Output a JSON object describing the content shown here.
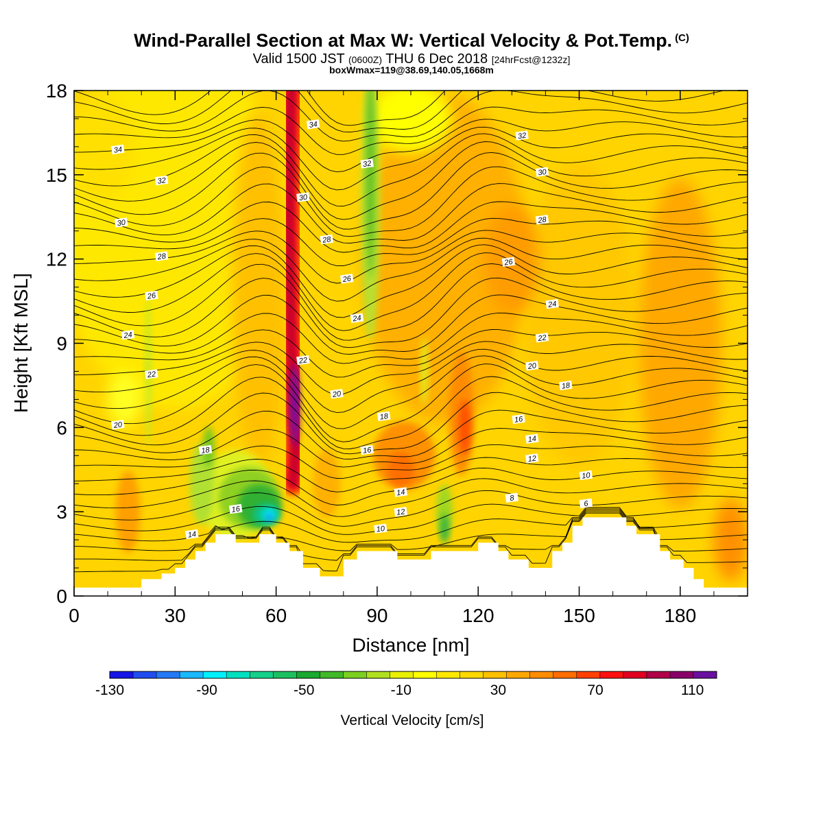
{
  "title": "Wind-Parallel Section at Max W: Vertical Velocity & Pot.Temp.",
  "title_mark": "(C)",
  "subtitle_a": "Valid 1500 JST",
  "subtitle_b": "(0600Z)",
  "subtitle_c": "THU 6 Dec 2018",
  "subtitle_d": "[24hrFcst@1232z]",
  "subtitle2": "boxWmax=119@38.69,140.05,1668m",
  "chart_data": {
    "type": "heatmap",
    "xlabel": "Distance [nm]",
    "ylabel": "Height [Kft MSL]",
    "xlim": [
      0,
      200
    ],
    "ylim": [
      0,
      18
    ],
    "xticks": [
      0,
      30,
      60,
      90,
      120,
      150,
      180
    ],
    "yticks": [
      0,
      3,
      6,
      9,
      12,
      15,
      18
    ],
    "colorbar": {
      "label": "Vertical Velocity [cm/s]",
      "range": [
        -130,
        120
      ],
      "tick_values": [
        -130,
        -90,
        -50,
        -10,
        30,
        70,
        110
      ],
      "colors": [
        "#1515e6",
        "#1f4df0",
        "#2379f5",
        "#1ab8ff",
        "#00f0ff",
        "#00e0c0",
        "#15d08a",
        "#1cc060",
        "#19a830",
        "#40b828",
        "#7ccf20",
        "#b0e020",
        "#e8f000",
        "#ffff00",
        "#ffe800",
        "#ffd800",
        "#ffc000",
        "#ffa800",
        "#ff8c00",
        "#ff6c00",
        "#ff4000",
        "#ff1010",
        "#e00020",
        "#b00048",
        "#880068",
        "#6a10a0"
      ]
    },
    "terrain_kft": [
      [
        0,
        0.3
      ],
      [
        20,
        0.3
      ],
      [
        20,
        0.6
      ],
      [
        26,
        0.6
      ],
      [
        26,
        0.8
      ],
      [
        30,
        0.8
      ],
      [
        30,
        1.0
      ],
      [
        33,
        1.0
      ],
      [
        33,
        1.3
      ],
      [
        36,
        1.3
      ],
      [
        36,
        1.6
      ],
      [
        39,
        1.6
      ],
      [
        39,
        1.9
      ],
      [
        42,
        1.9
      ],
      [
        42,
        2.2
      ],
      [
        48,
        2.2
      ],
      [
        48,
        1.9
      ],
      [
        55,
        1.9
      ],
      [
        55,
        2.2
      ],
      [
        60,
        2.2
      ],
      [
        60,
        1.9
      ],
      [
        64,
        1.9
      ],
      [
        64,
        1.6
      ],
      [
        68,
        1.6
      ],
      [
        68,
        1.0
      ],
      [
        73,
        1.0
      ],
      [
        73,
        0.7
      ],
      [
        80,
        0.7
      ],
      [
        80,
        1.3
      ],
      [
        84,
        1.3
      ],
      [
        84,
        1.6
      ],
      [
        96,
        1.6
      ],
      [
        96,
        1.3
      ],
      [
        106,
        1.3
      ],
      [
        106,
        1.6
      ],
      [
        120,
        1.6
      ],
      [
        120,
        1.9
      ],
      [
        126,
        1.9
      ],
      [
        126,
        1.6
      ],
      [
        129,
        1.6
      ],
      [
        129,
        1.3
      ],
      [
        135,
        1.3
      ],
      [
        135,
        1.0
      ],
      [
        142,
        1.0
      ],
      [
        142,
        1.6
      ],
      [
        145,
        1.6
      ],
      [
        145,
        1.9
      ],
      [
        148,
        1.9
      ],
      [
        148,
        2.5
      ],
      [
        151,
        2.5
      ],
      [
        151,
        2.8
      ],
      [
        164,
        2.8
      ],
      [
        164,
        2.5
      ],
      [
        167,
        2.5
      ],
      [
        167,
        2.2
      ],
      [
        174,
        2.2
      ],
      [
        174,
        1.6
      ],
      [
        177,
        1.6
      ],
      [
        177,
        1.3
      ],
      [
        181,
        1.3
      ],
      [
        181,
        1.0
      ],
      [
        184,
        1.0
      ],
      [
        184,
        0.6
      ],
      [
        187,
        0.6
      ],
      [
        187,
        0.3
      ],
      [
        200,
        0.3
      ]
    ],
    "features": [
      {
        "name": "updraft_core",
        "x": [
          66,
          64,
          63
        ],
        "y": [
          4,
          10,
          18
        ],
        "w_cms": 119
      },
      {
        "name": "downdraft_lee",
        "x": 58,
        "y": 2.8,
        "w_cms": -110
      },
      {
        "name": "sink_band",
        "x": 88,
        "y": [
          8,
          18
        ],
        "w_cms": -30
      }
    ],
    "contours": [
      {
        "label": "6",
        "pos": [
          152,
          3.3
        ]
      },
      {
        "label": "8",
        "pos": [
          130,
          3.5
        ]
      },
      {
        "label": "10",
        "pos": [
          91,
          2.4
        ]
      },
      {
        "label": "10",
        "pos": [
          152,
          4.3
        ]
      },
      {
        "label": "12",
        "pos": [
          97,
          3.0
        ]
      },
      {
        "label": "12",
        "pos": [
          136,
          4.9
        ]
      },
      {
        "label": "14",
        "pos": [
          35,
          2.2
        ]
      },
      {
        "label": "14",
        "pos": [
          97,
          3.7
        ]
      },
      {
        "label": "14",
        "pos": [
          136,
          5.6
        ]
      },
      {
        "label": "16",
        "pos": [
          48,
          3.1
        ]
      },
      {
        "label": "16",
        "pos": [
          87,
          5.2
        ]
      },
      {
        "label": "16",
        "pos": [
          132,
          6.3
        ]
      },
      {
        "label": "18",
        "pos": [
          39,
          5.2
        ]
      },
      {
        "label": "18",
        "pos": [
          92,
          6.4
        ]
      },
      {
        "label": "18",
        "pos": [
          146,
          7.5
        ]
      },
      {
        "label": "20",
        "pos": [
          13,
          6.1
        ]
      },
      {
        "label": "20",
        "pos": [
          78,
          7.2
        ]
      },
      {
        "label": "20",
        "pos": [
          136,
          8.2
        ]
      },
      {
        "label": "22",
        "pos": [
          23,
          7.9
        ]
      },
      {
        "label": "22",
        "pos": [
          68,
          8.4
        ]
      },
      {
        "label": "22",
        "pos": [
          139,
          9.2
        ]
      },
      {
        "label": "24",
        "pos": [
          16,
          9.3
        ]
      },
      {
        "label": "24",
        "pos": [
          84,
          9.9
        ]
      },
      {
        "label": "24",
        "pos": [
          142,
          10.4
        ]
      },
      {
        "label": "26",
        "pos": [
          23,
          10.7
        ]
      },
      {
        "label": "26",
        "pos": [
          81,
          11.3
        ]
      },
      {
        "label": "26",
        "pos": [
          129,
          11.9
        ]
      },
      {
        "label": "28",
        "pos": [
          26,
          12.1
        ]
      },
      {
        "label": "28",
        "pos": [
          75,
          12.7
        ]
      },
      {
        "label": "28",
        "pos": [
          139,
          13.4
        ]
      },
      {
        "label": "30",
        "pos": [
          14,
          13.3
        ]
      },
      {
        "label": "30",
        "pos": [
          68,
          14.2
        ]
      },
      {
        "label": "30",
        "pos": [
          139,
          15.1
        ]
      },
      {
        "label": "32",
        "pos": [
          26,
          14.8
        ]
      },
      {
        "label": "32",
        "pos": [
          87,
          15.4
        ]
      },
      {
        "label": "32",
        "pos": [
          133,
          16.4
        ]
      },
      {
        "label": "34",
        "pos": [
          13,
          15.9
        ]
      },
      {
        "label": "34",
        "pos": [
          71,
          16.8
        ]
      }
    ]
  }
}
